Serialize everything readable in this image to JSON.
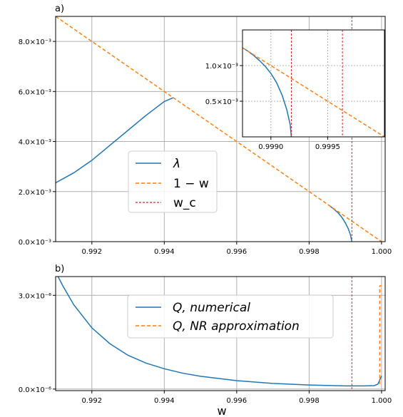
{
  "colors": {
    "lambda": "#1f77b4",
    "one_minus_w": "#ff7f0e",
    "wc": "#d62728",
    "grid": "#b0b0b0",
    "axis": "#000000"
  },
  "chart_data": [
    {
      "id": "a",
      "type": "line",
      "panel_label": "a)",
      "xlim": [
        0.991,
        1.0001
      ],
      "ylim": [
        0,
        0.009
      ],
      "xticks": [
        0.992,
        0.994,
        0.996,
        0.998,
        1.0
      ],
      "xtick_labels": [
        "0.992",
        "0.994",
        "0.996",
        "0.998",
        "1.000"
      ],
      "yticks": [
        0,
        0.002,
        0.004,
        0.006,
        0.008
      ],
      "ytick_labels": [
        "0.0×10⁻³",
        "2.0×10⁻³",
        "4.0×10⁻³",
        "6.0×10⁻³",
        "8.0×10⁻³"
      ],
      "grid": true,
      "legend_position": "center-left",
      "series": [
        {
          "name": "λ",
          "style": "solid",
          "color": "#1f77b4",
          "segments": [
            {
              "x": [
                0.991,
                0.9915,
                0.992,
                0.9925,
                0.993,
                0.9935,
                0.994,
                0.99425
              ],
              "y": [
                0.00235,
                0.00275,
                0.00325,
                0.00385,
                0.00445,
                0.00505,
                0.0056,
                0.00575
              ]
            },
            {
              "x": [
                0.99855,
                0.9987,
                0.9988,
                0.9989,
                0.999,
                0.99908,
                0.99914,
                0.99918
              ],
              "y": [
                0.00145,
                0.00128,
                0.00115,
                0.00098,
                0.00075,
                0.00052,
                0.00028,
                0.0
              ]
            }
          ]
        },
        {
          "name": "1 − w",
          "style": "dashed",
          "color": "#ff7f0e",
          "segments": [
            {
              "x": [
                0.991,
                1.0
              ],
              "y": [
                0.009,
                0.0
              ]
            }
          ]
        },
        {
          "name": "w_c",
          "style": "dashed",
          "color": "#d62728",
          "vline": 0.99918
        }
      ],
      "inset": {
        "xlim": [
          0.99875,
          1.0
        ],
        "ylim": [
          0,
          0.0015
        ],
        "xticks": [
          0.999,
          0.9995
        ],
        "xtick_labels": [
          "0.9990",
          "0.9995"
        ],
        "yticks": [
          0.0005,
          0.001
        ],
        "ytick_labels": [
          "0.5×10⁻³",
          "1.0×10⁻³"
        ],
        "grid": true,
        "series": [
          {
            "name": "λ",
            "style": "solid",
            "color": "#1f77b4",
            "x": [
              0.99875,
              0.9988,
              0.99885,
              0.9989,
              0.99895,
              0.999,
              0.99905,
              0.9991,
              0.99914,
              0.99917,
              0.99918
            ],
            "y": [
              0.00125,
              0.0012,
              0.00114,
              0.00107,
              0.00099,
              0.00089,
              0.00076,
              0.00058,
              0.00038,
              0.00017,
              0.0
            ]
          },
          {
            "name": "1 − w",
            "style": "dashed",
            "color": "#ff7f0e",
            "x": [
              0.99875,
              1.0
            ],
            "y": [
              0.00125,
              0.0
            ]
          },
          {
            "name": "w_c",
            "style": "dashed",
            "color": "#d62728",
            "vline": 0.99918
          },
          {
            "name": "w_c",
            "style": "dashed",
            "color": "#d62728",
            "vline": 0.99963
          }
        ]
      }
    },
    {
      "id": "b",
      "type": "line",
      "panel_label": "b)",
      "xlabel": "w",
      "xlim": [
        0.991,
        1.0001
      ],
      "ylim": [
        -5e-08,
        3.6e-06
      ],
      "xticks": [
        0.992,
        0.994,
        0.996,
        0.998,
        1.0
      ],
      "xtick_labels": [
        "0.992",
        "0.994",
        "0.996",
        "0.998",
        "1.000"
      ],
      "yticks": [
        0,
        3e-06
      ],
      "ytick_labels": [
        "0.0×10⁻⁶",
        "3.0×10⁻⁶"
      ],
      "grid": true,
      "legend_position": "top-right",
      "series": [
        {
          "name": "Q,  numerical",
          "style": "solid",
          "color": "#1f77b4",
          "x": [
            0.991,
            0.9912,
            0.9915,
            0.992,
            0.9925,
            0.993,
            0.9935,
            0.994,
            0.9945,
            0.995,
            0.996,
            0.997,
            0.998,
            0.999,
            0.9995,
            0.9998,
            0.9999,
            1.0
          ],
          "y": [
            3.75e-06,
            3.3e-06,
            2.7e-06,
            1.96e-06,
            1.45e-06,
            1.08e-06,
            8.3e-07,
            6.5e-07,
            5.1e-07,
            4.1e-07,
            2.7e-07,
            1.8e-07,
            1.3e-07,
            1e-07,
            1e-07,
            1.1e-07,
            1.6e-07,
            4.2e-07
          ]
        },
        {
          "name": "Q,  NR approximation",
          "style": "dashed",
          "color": "#ff7f0e",
          "x": [
            0.99995,
            0.99995,
            1.0
          ],
          "y": [
            1.6e-07,
            3.3e-06,
            3.3e-06
          ]
        },
        {
          "name": "w_c",
          "style": "dashed",
          "color": "#d62728",
          "vline": 0.99918
        }
      ]
    }
  ],
  "legend_a": [
    "λ",
    "1 − w",
    "w_c"
  ],
  "legend_b": [
    "Q,  numerical",
    "Q,  NR approximation"
  ]
}
